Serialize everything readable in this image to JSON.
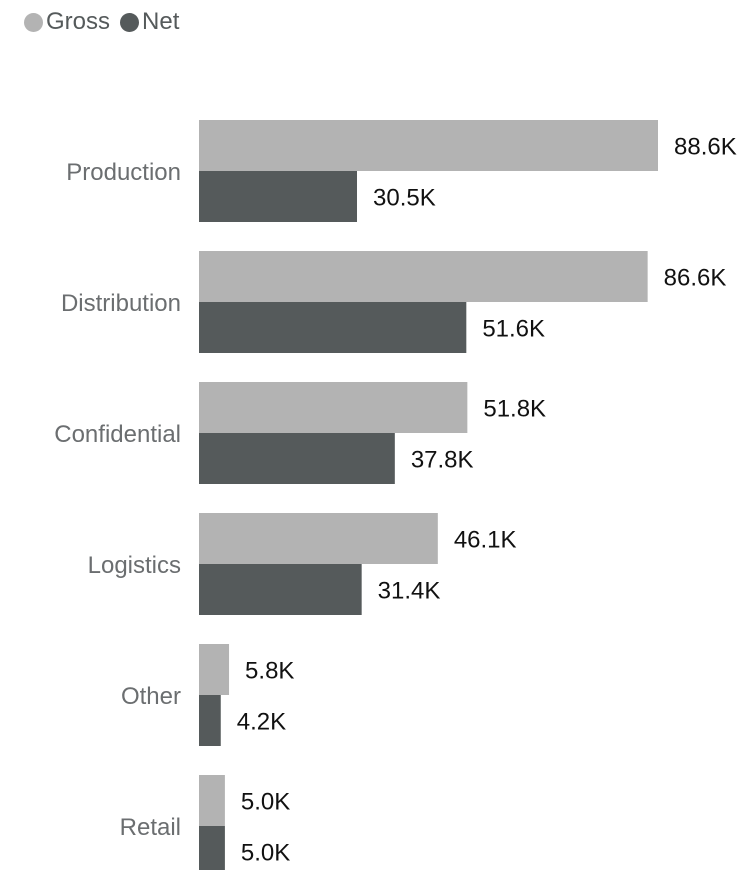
{
  "chart_data": {
    "type": "bar",
    "orientation": "horizontal",
    "categories": [
      "Production",
      "Distribution",
      "Confidential",
      "Logistics",
      "Other",
      "Retail"
    ],
    "series": [
      {
        "name": "Gross",
        "values": [
          88.6,
          86.6,
          51.8,
          46.1,
          5.8,
          5.0
        ],
        "labels": [
          "88.6K",
          "86.6K",
          "51.8K",
          "46.1K",
          "5.8K",
          "5.0K"
        ],
        "color": "#b3b3b3"
      },
      {
        "name": "Net",
        "values": [
          30.5,
          51.6,
          37.8,
          31.4,
          4.2,
          5.0
        ],
        "labels": [
          "30.5K",
          "51.6K",
          "37.8K",
          "31.4K",
          "4.2K",
          "5.0K"
        ],
        "color": "#555a5b"
      }
    ],
    "unit": "K",
    "xlim": [
      0,
      90
    ],
    "title": "",
    "xlabel": "",
    "ylabel": "",
    "grid": false,
    "legend_position": "top-left"
  }
}
